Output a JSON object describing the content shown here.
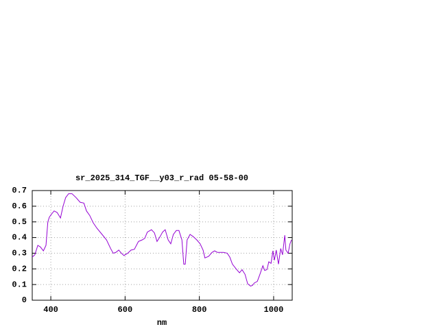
{
  "chart_data": {
    "type": "line",
    "title": "sr_2025_314_TGF__y03_r_rad 05-58-00",
    "x_label": "nm",
    "x": [
      350,
      357,
      365,
      372,
      380,
      387,
      392,
      396,
      402,
      409,
      417,
      426,
      433,
      440,
      448,
      457,
      468,
      479,
      489,
      496,
      505,
      514,
      524,
      538,
      550,
      561,
      568,
      575,
      583,
      590,
      597,
      607,
      616,
      625,
      636,
      646,
      653,
      660,
      671,
      679,
      686,
      694,
      701,
      708,
      716,
      723,
      730,
      738,
      745,
      753,
      758,
      762,
      767,
      775,
      784,
      793,
      802,
      810,
      815,
      825,
      834,
      841,
      849,
      856,
      865,
      875,
      882,
      889,
      899,
      908,
      915,
      923,
      930,
      938,
      943,
      948,
      956,
      963,
      971,
      976,
      982,
      987,
      993,
      998,
      1002,
      1007,
      1013,
      1019,
      1024,
      1030,
      1033,
      1039,
      1044,
      1048
    ],
    "series": [
      {
        "color": "#9400d3",
        "values": [
          0.275,
          0.29,
          0.35,
          0.34,
          0.315,
          0.35,
          0.5,
          0.53,
          0.55,
          0.57,
          0.56,
          0.525,
          0.6,
          0.655,
          0.68,
          0.68,
          0.655,
          0.625,
          0.62,
          0.57,
          0.54,
          0.495,
          0.46,
          0.42,
          0.385,
          0.33,
          0.3,
          0.305,
          0.32,
          0.3,
          0.285,
          0.3,
          0.32,
          0.325,
          0.375,
          0.385,
          0.395,
          0.435,
          0.45,
          0.43,
          0.375,
          0.405,
          0.435,
          0.45,
          0.385,
          0.36,
          0.42,
          0.445,
          0.445,
          0.385,
          0.23,
          0.23,
          0.385,
          0.42,
          0.405,
          0.385,
          0.36,
          0.32,
          0.27,
          0.28,
          0.305,
          0.315,
          0.305,
          0.305,
          0.305,
          0.3,
          0.275,
          0.23,
          0.2,
          0.175,
          0.195,
          0.165,
          0.105,
          0.09,
          0.095,
          0.11,
          0.12,
          0.165,
          0.22,
          0.19,
          0.195,
          0.245,
          0.235,
          0.315,
          0.255,
          0.32,
          0.23,
          0.33,
          0.29,
          0.415,
          0.32,
          0.3,
          0.36,
          0.385
        ]
      }
    ],
    "xlim": [
      350,
      1050
    ],
    "xticks": [
      400,
      600,
      800,
      1000
    ],
    "ylim": [
      0,
      0.7
    ],
    "yticks": [
      0,
      0.1,
      0.2,
      0.3,
      0.4,
      0.5,
      0.6,
      0.7
    ],
    "grid": true
  }
}
